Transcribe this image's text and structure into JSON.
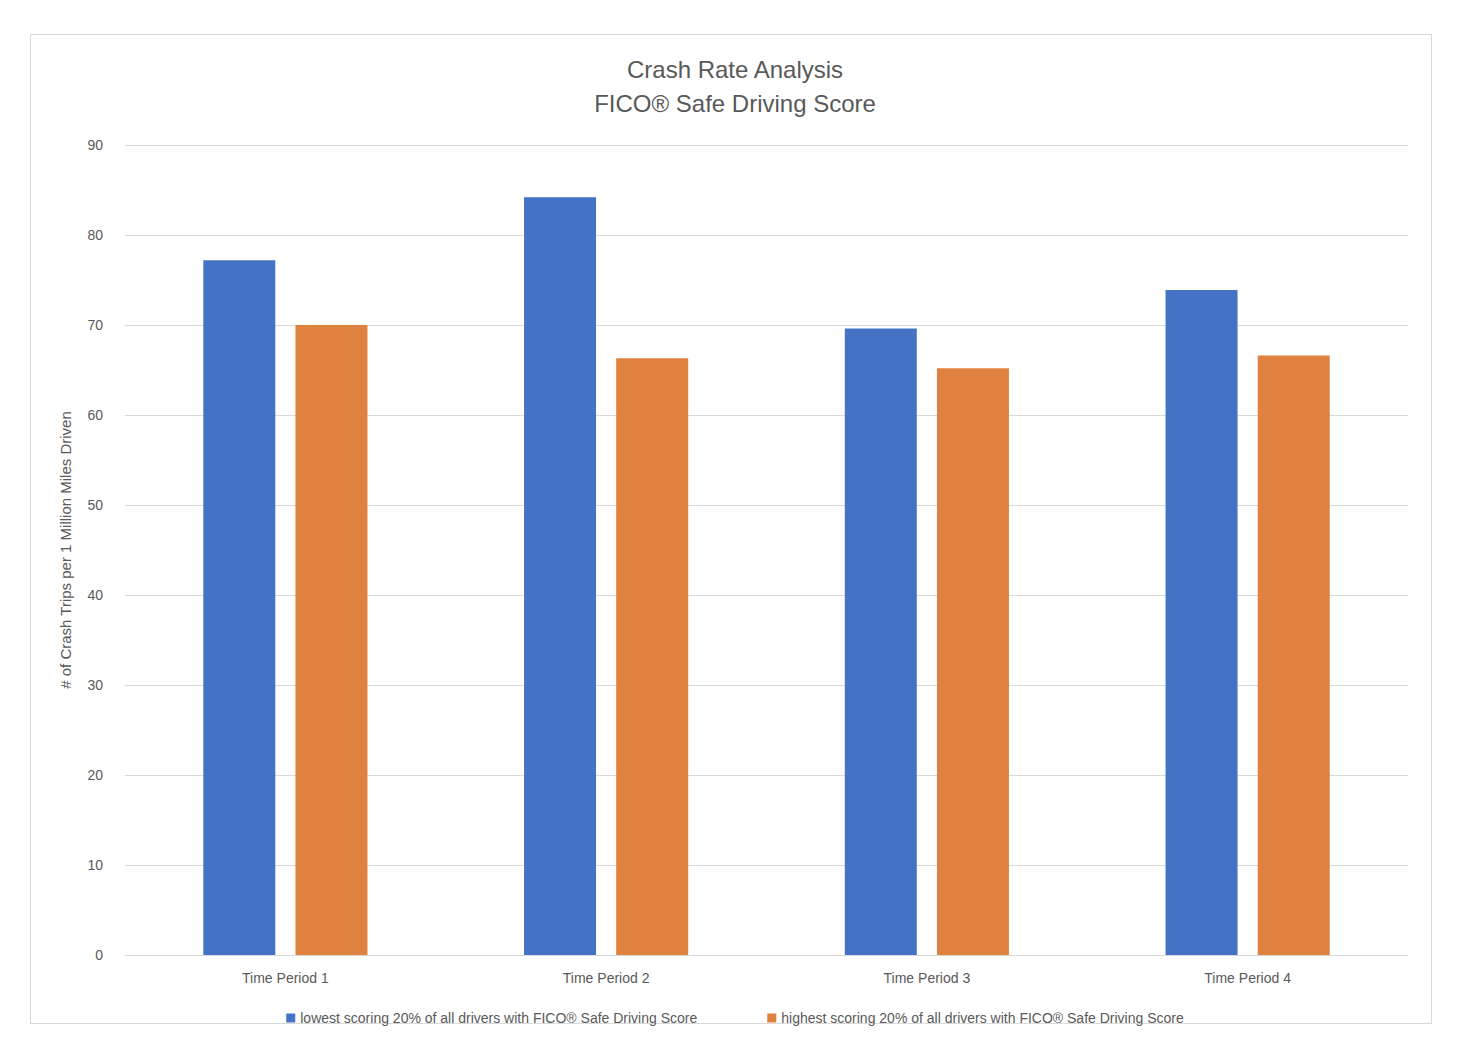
{
  "chart_data": {
    "type": "bar",
    "title": "Crash Rate Analysis",
    "subtitle": "FICO® Safe Driving Score",
    "y_label": "# of Crash Trips per 1 Million Miles Driven",
    "categories": [
      "Time Period 1",
      "Time Period 2",
      "Time Period 3",
      "Time Period 4"
    ],
    "series": [
      {
        "name": "lowest scoring 20% of all drivers with FICO® Safe Driving Score",
        "color": "#4472c4",
        "values": [
          77.2,
          84.2,
          69.6,
          73.9
        ]
      },
      {
        "name": "highest scoring 20% of all drivers with FICO® Safe Driving Score",
        "color": "#e0823f",
        "values": [
          70.0,
          66.3,
          65.2,
          66.6
        ]
      }
    ],
    "ylim": [
      0,
      90
    ],
    "yticks": [
      0,
      10,
      20,
      30,
      40,
      50,
      60,
      70,
      80,
      90
    ],
    "grid": true,
    "legend": "bottom"
  }
}
